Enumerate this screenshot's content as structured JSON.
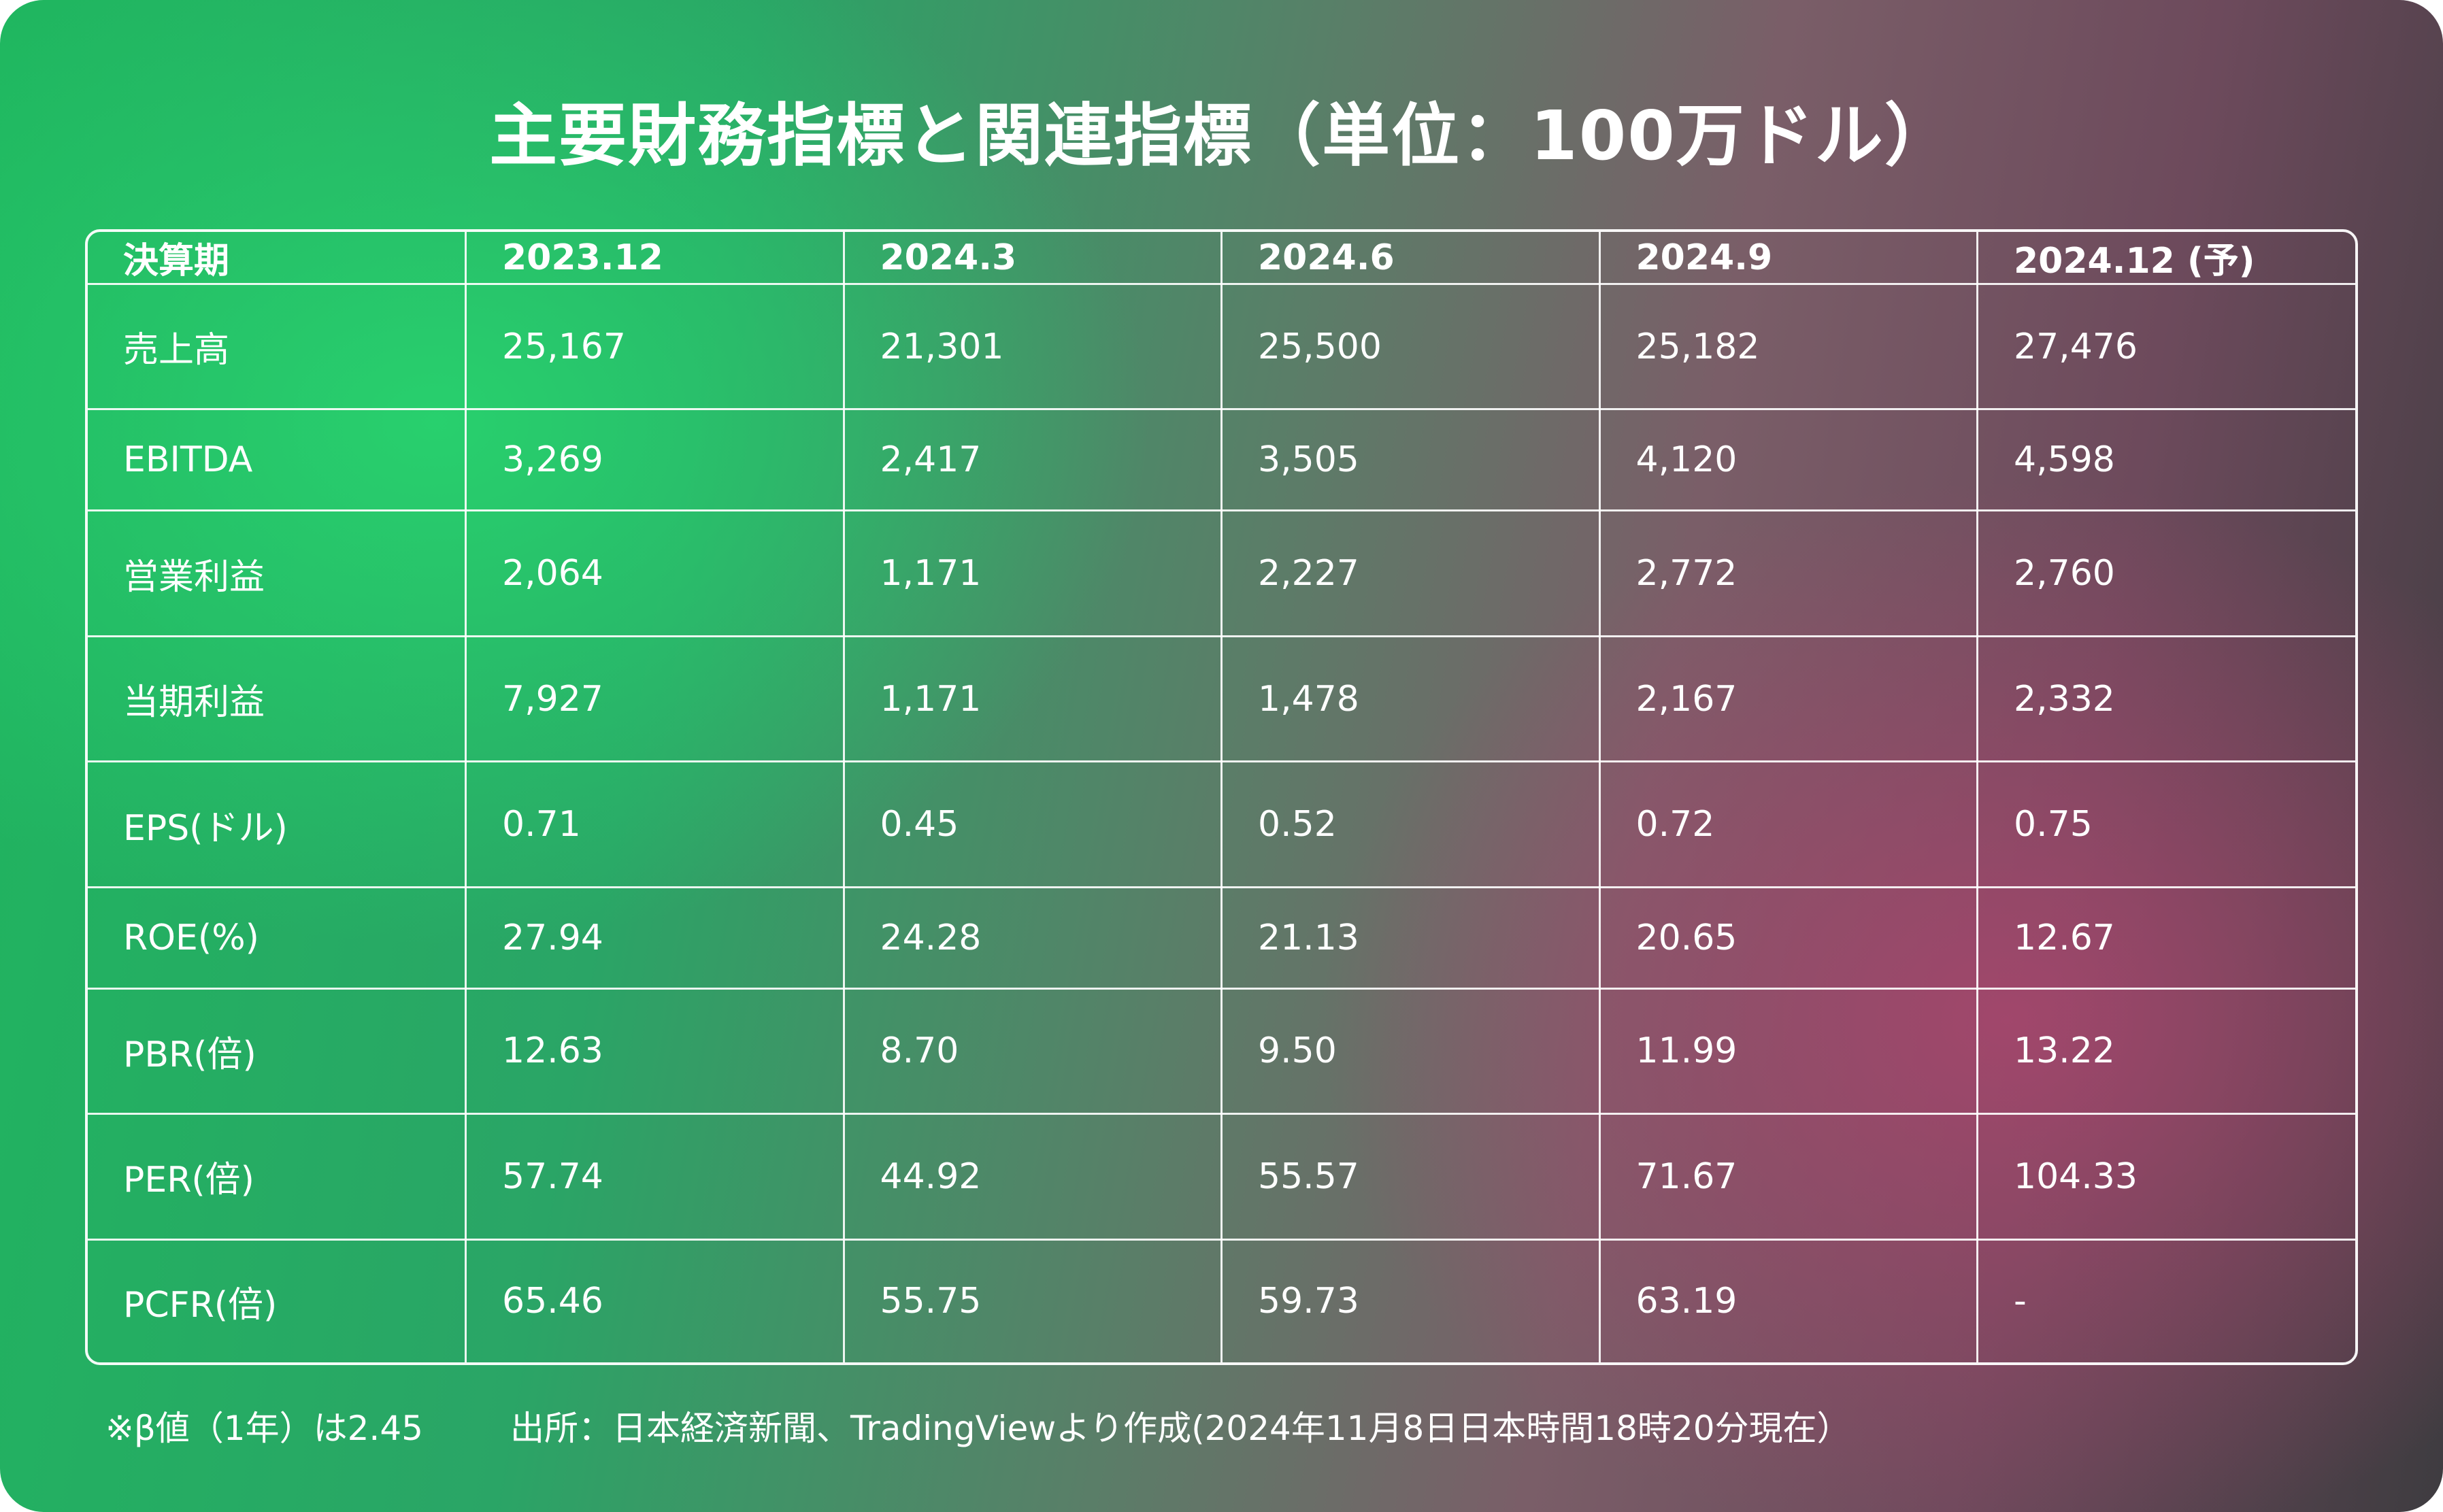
{
  "title": "主要財務指標と関連指標（単位：100万ドル）",
  "colors": {
    "green": "#22c26a",
    "pink": "#a2506e",
    "dark": "#3e3c40",
    "grid": "#ffffff"
  },
  "table": {
    "headers": [
      "決算期",
      "2023.12",
      "2024.3",
      "2024.6",
      "2024.9",
      "2024.12 (予)"
    ],
    "rows": [
      [
        "売上高",
        "25,167",
        "21,301",
        "25,500",
        "25,182",
        "27,476"
      ],
      [
        "EBITDA",
        "3,269",
        "2,417",
        "3,505",
        "4,120",
        "4,598"
      ],
      [
        "営業利益",
        "2,064",
        "1,171",
        "2,227",
        "2,772",
        "2,760"
      ],
      [
        "当期利益",
        "7,927",
        "1,171",
        "1,478",
        "2,167",
        "2,332"
      ],
      [
        "EPS(ドル)",
        "0.71",
        "0.45",
        "0.52",
        "0.72",
        "0.75"
      ],
      [
        "ROE(%)",
        "27.94",
        "24.28",
        "21.13",
        "20.65",
        "12.67"
      ],
      [
        "PBR(倍)",
        "12.63",
        "8.70",
        "9.50",
        "11.99",
        "13.22"
      ],
      [
        "PER(倍)",
        "57.74",
        "44.92",
        "55.57",
        "71.67",
        "104.33"
      ],
      [
        "PCFR(倍)",
        "65.46",
        "55.75",
        "59.73",
        "63.19",
        "-"
      ]
    ]
  },
  "footer": {
    "note": "※β値（1年）は2.45",
    "source": "出所：日本経済新聞、TradingViewより作成(2024年11月8日日本時間18時20分現在）"
  }
}
